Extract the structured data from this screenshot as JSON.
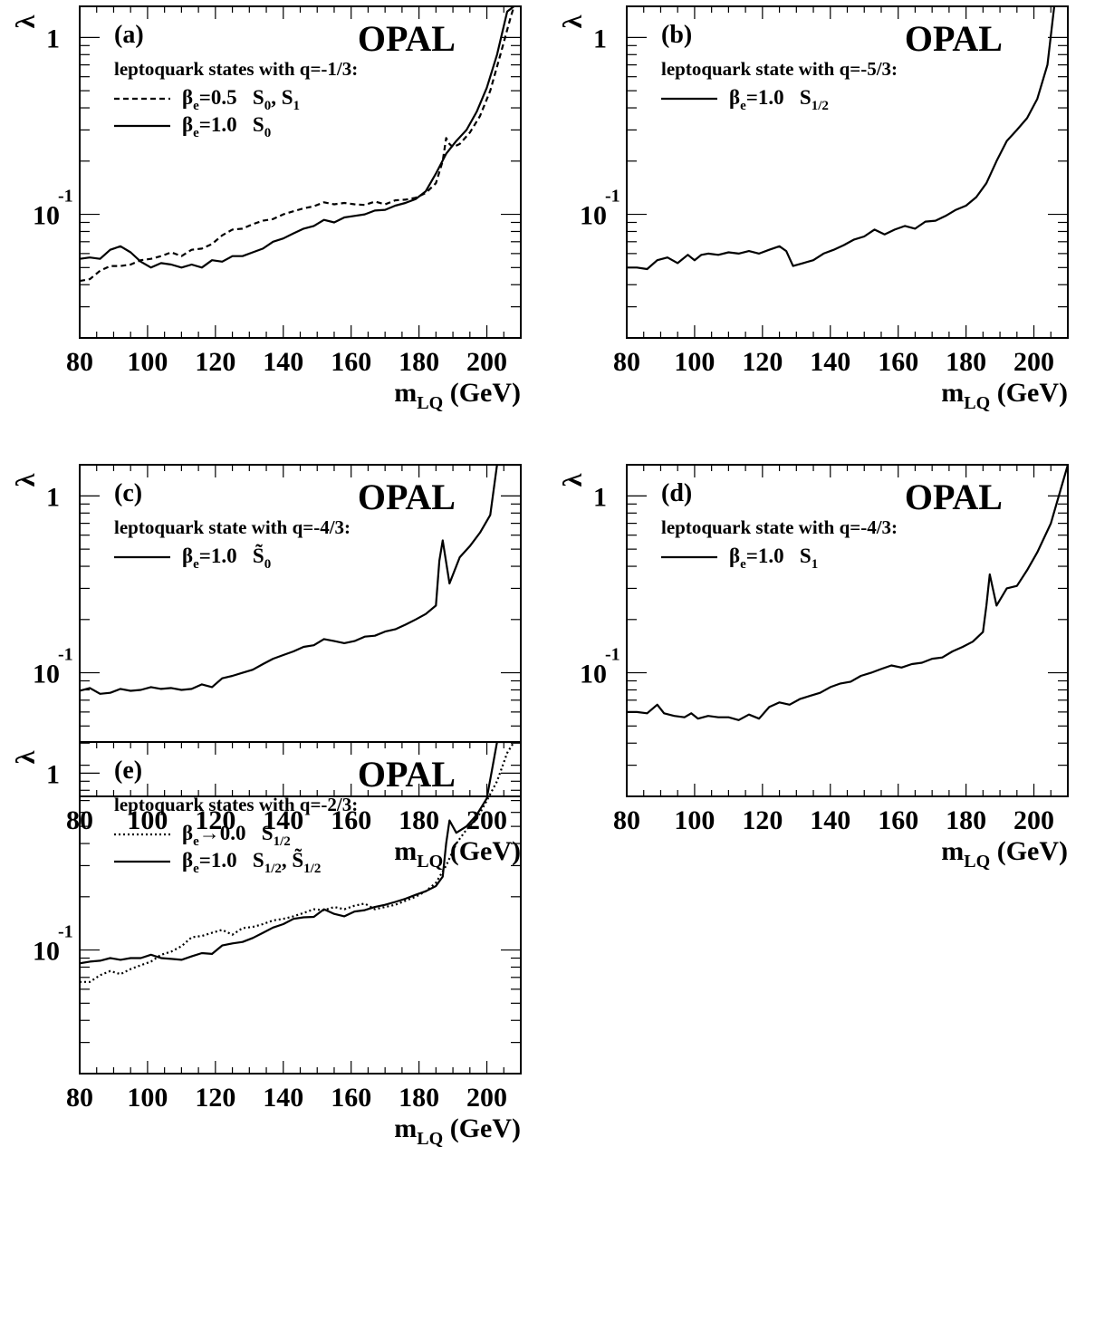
{
  "chart_data": [
    {
      "type": "line",
      "panel_label": "(a)",
      "experiment": "OPAL",
      "heading": "leptoquark states with q=-1/3:",
      "ylabel": "λ",
      "xlabel": {
        "main": "m",
        "sub": "LQ",
        "unit": "(GeV)"
      },
      "y_scale": "log",
      "xlim": [
        80,
        210
      ],
      "ylim": [
        0.02,
        1.5
      ],
      "x_ticks": [
        "80",
        "100",
        "120",
        "140",
        "160",
        "180",
        "200"
      ],
      "y_ticks": [
        {
          "value": 1,
          "label": "1"
        },
        {
          "value": 0.1,
          "label": "10",
          "exp": "-1"
        }
      ],
      "legend": [
        {
          "style": "dashed",
          "beta_sym": "β",
          "beta_sub": "e",
          "beta_val": "=0.5",
          "state": "S",
          "state_sub": "0",
          "sep": ", ",
          "state2": "S",
          "state2_sub": "1"
        },
        {
          "style": "solid",
          "beta_sym": "β",
          "beta_sub": "e",
          "beta_val": "=1.0",
          "state": "S",
          "state_sub": "0"
        }
      ],
      "series": [
        {
          "style": "dashed",
          "x": [
            80,
            83,
            86,
            89,
            92,
            95,
            98,
            101,
            104,
            107,
            110,
            113,
            116,
            119,
            122,
            125,
            128,
            131,
            134,
            137,
            140,
            143,
            146,
            149,
            152,
            155,
            158,
            161,
            164,
            167,
            170,
            173,
            176,
            179,
            182,
            185,
            187,
            188,
            189,
            190,
            192,
            195,
            198,
            201,
            204,
            207,
            208
          ],
          "y": [
            0.042,
            0.043,
            0.048,
            0.051,
            0.051,
            0.052,
            0.055,
            0.056,
            0.058,
            0.061,
            0.058,
            0.063,
            0.064,
            0.068,
            0.076,
            0.082,
            0.083,
            0.088,
            0.092,
            0.094,
            0.1,
            0.104,
            0.108,
            0.111,
            0.117,
            0.114,
            0.116,
            0.114,
            0.113,
            0.118,
            0.114,
            0.12,
            0.121,
            0.124,
            0.132,
            0.15,
            0.2,
            0.27,
            0.25,
            0.24,
            0.25,
            0.29,
            0.36,
            0.5,
            0.8,
            1.3,
            1.5
          ]
        },
        {
          "style": "solid",
          "x": [
            80,
            83,
            86,
            89,
            92,
            95,
            98,
            101,
            104,
            107,
            110,
            113,
            116,
            119,
            122,
            125,
            128,
            131,
            134,
            137,
            140,
            143,
            146,
            149,
            152,
            155,
            158,
            161,
            164,
            167,
            170,
            173,
            176,
            179,
            182,
            185,
            188,
            191,
            194,
            197,
            200,
            203,
            206,
            208
          ],
          "y": [
            0.056,
            0.057,
            0.056,
            0.063,
            0.066,
            0.061,
            0.054,
            0.05,
            0.053,
            0.052,
            0.05,
            0.052,
            0.05,
            0.055,
            0.054,
            0.058,
            0.058,
            0.061,
            0.064,
            0.07,
            0.073,
            0.078,
            0.083,
            0.086,
            0.093,
            0.09,
            0.096,
            0.098,
            0.1,
            0.105,
            0.106,
            0.112,
            0.116,
            0.122,
            0.135,
            0.17,
            0.22,
            0.26,
            0.3,
            0.38,
            0.52,
            0.8,
            1.4,
            1.5
          ]
        }
      ]
    },
    {
      "type": "line",
      "panel_label": "(b)",
      "experiment": "OPAL",
      "heading": "leptoquark state with q=-5/3:",
      "ylabel": "λ",
      "xlabel": {
        "main": "m",
        "sub": "LQ",
        "unit": "(GeV)"
      },
      "y_scale": "log",
      "xlim": [
        80,
        210
      ],
      "ylim": [
        0.02,
        1.5
      ],
      "x_ticks": [
        "80",
        "100",
        "120",
        "140",
        "160",
        "180",
        "200"
      ],
      "y_ticks": [
        {
          "value": 1,
          "label": "1"
        },
        {
          "value": 0.1,
          "label": "10",
          "exp": "-1"
        }
      ],
      "legend": [
        {
          "style": "solid",
          "beta_sym": "β",
          "beta_sub": "e",
          "beta_val": "=1.0",
          "state": "S",
          "state_sub": "1/2"
        }
      ],
      "series": [
        {
          "style": "solid",
          "x": [
            80,
            83,
            86,
            89,
            92,
            95,
            98,
            100,
            102,
            104,
            107,
            110,
            113,
            116,
            119,
            122,
            125,
            127,
            129,
            132,
            135,
            138,
            141,
            144,
            147,
            150,
            153,
            156,
            159,
            162,
            165,
            168,
            171,
            174,
            177,
            180,
            183,
            186,
            189,
            192,
            195,
            198,
            201,
            204,
            206
          ],
          "y": [
            0.05,
            0.05,
            0.049,
            0.055,
            0.057,
            0.053,
            0.059,
            0.055,
            0.059,
            0.06,
            0.059,
            0.061,
            0.06,
            0.062,
            0.06,
            0.063,
            0.066,
            0.062,
            0.051,
            0.053,
            0.055,
            0.06,
            0.063,
            0.067,
            0.072,
            0.075,
            0.082,
            0.077,
            0.082,
            0.086,
            0.083,
            0.091,
            0.092,
            0.098,
            0.106,
            0.112,
            0.125,
            0.15,
            0.2,
            0.26,
            0.3,
            0.35,
            0.45,
            0.7,
            1.5
          ]
        }
      ]
    },
    {
      "type": "line",
      "panel_label": "(c)",
      "experiment": "OPAL",
      "heading": "leptoquark state with q=-4/3:",
      "ylabel": "λ",
      "xlabel": {
        "main": "m",
        "sub": "LQ",
        "unit": "(GeV)"
      },
      "y_scale": "log",
      "xlim": [
        80,
        210
      ],
      "ylim": [
        0.02,
        1.5
      ],
      "x_ticks": [
        "80",
        "100",
        "120",
        "140",
        "160",
        "180",
        "200"
      ],
      "y_ticks": [
        {
          "value": 1,
          "label": "1"
        },
        {
          "value": 0.1,
          "label": "10",
          "exp": "-1"
        }
      ],
      "legend": [
        {
          "style": "solid",
          "beta_sym": "β",
          "beta_sub": "e",
          "beta_val": "=1.0",
          "state": "S̃",
          "state_sub": "0"
        }
      ],
      "series": [
        {
          "style": "solid",
          "x": [
            80,
            83,
            86,
            89,
            92,
            95,
            98,
            101,
            104,
            107,
            110,
            113,
            116,
            119,
            122,
            125,
            128,
            131,
            134,
            137,
            140,
            143,
            146,
            149,
            152,
            155,
            158,
            161,
            164,
            167,
            170,
            173,
            176,
            179,
            182,
            185,
            186,
            187,
            189,
            192,
            195,
            198,
            201,
            203,
            210
          ],
          "y": [
            0.079,
            0.082,
            0.076,
            0.077,
            0.081,
            0.079,
            0.08,
            0.083,
            0.081,
            0.082,
            0.08,
            0.081,
            0.086,
            0.083,
            0.093,
            0.096,
            0.1,
            0.104,
            0.112,
            0.12,
            0.126,
            0.132,
            0.14,
            0.143,
            0.155,
            0.151,
            0.147,
            0.151,
            0.16,
            0.162,
            0.171,
            0.176,
            0.187,
            0.2,
            0.215,
            0.24,
            0.43,
            0.56,
            0.32,
            0.45,
            0.52,
            0.62,
            0.78,
            1.5,
            1.5
          ]
        }
      ]
    },
    {
      "type": "line",
      "panel_label": "(d)",
      "experiment": "OPAL",
      "heading": "leptoquark state with q=-4/3:",
      "ylabel": "λ",
      "xlabel": {
        "main": "m",
        "sub": "LQ",
        "unit": "(GeV)"
      },
      "y_scale": "log",
      "xlim": [
        80,
        210
      ],
      "ylim": [
        0.02,
        1.5
      ],
      "x_ticks": [
        "80",
        "100",
        "120",
        "140",
        "160",
        "180",
        "200"
      ],
      "y_ticks": [
        {
          "value": 1,
          "label": "1"
        },
        {
          "value": 0.1,
          "label": "10",
          "exp": "-1"
        }
      ],
      "legend": [
        {
          "style": "solid",
          "beta_sym": "β",
          "beta_sub": "e",
          "beta_val": "=1.0",
          "state": "S",
          "state_sub": "1"
        }
      ],
      "series": [
        {
          "style": "solid",
          "x": [
            80,
            83,
            86,
            89,
            91,
            94,
            97,
            99,
            101,
            104,
            107,
            110,
            113,
            116,
            119,
            122,
            125,
            128,
            131,
            134,
            137,
            140,
            143,
            146,
            149,
            152,
            155,
            158,
            161,
            164,
            167,
            170,
            173,
            176,
            179,
            182,
            185,
            186,
            187,
            189,
            192,
            195,
            198,
            201,
            205,
            210
          ],
          "y": [
            0.06,
            0.06,
            0.059,
            0.066,
            0.059,
            0.057,
            0.056,
            0.059,
            0.055,
            0.057,
            0.056,
            0.056,
            0.054,
            0.058,
            0.055,
            0.064,
            0.068,
            0.066,
            0.071,
            0.074,
            0.077,
            0.083,
            0.087,
            0.089,
            0.096,
            0.1,
            0.105,
            0.11,
            0.107,
            0.112,
            0.114,
            0.12,
            0.122,
            0.132,
            0.14,
            0.15,
            0.17,
            0.24,
            0.36,
            0.24,
            0.3,
            0.31,
            0.38,
            0.48,
            0.7,
            1.5
          ]
        }
      ]
    },
    {
      "type": "line",
      "panel_label": "(e)",
      "experiment": "OPAL",
      "heading": "leptoquark states with q=-2/3:",
      "ylabel": "λ",
      "xlabel": {
        "main": "m",
        "sub": "LQ",
        "unit": "(GeV)"
      },
      "y_scale": "log",
      "xlim": [
        80,
        210
      ],
      "ylim": [
        0.02,
        1.5
      ],
      "x_ticks": [
        "80",
        "100",
        "120",
        "140",
        "160",
        "180",
        "200"
      ],
      "y_ticks": [
        {
          "value": 1,
          "label": "1"
        },
        {
          "value": 0.1,
          "label": "10",
          "exp": "-1"
        }
      ],
      "legend": [
        {
          "style": "dotted",
          "beta_sym": "β",
          "beta_sub": "e",
          "beta_val": "→0.0",
          "state": "S",
          "state_sub": "1/2"
        },
        {
          "style": "solid",
          "beta_sym": "β",
          "beta_sub": "e",
          "beta_val": "=1.0",
          "state": "S",
          "state_sub": "1/2",
          "sep": ", ",
          "state2": "S̃",
          "state2_sub": "1/2"
        }
      ],
      "series": [
        {
          "style": "dotted",
          "x": [
            80,
            83,
            86,
            89,
            92,
            95,
            98,
            101,
            104,
            107,
            110,
            113,
            116,
            119,
            122,
            125,
            128,
            131,
            134,
            137,
            140,
            143,
            146,
            149,
            152,
            155,
            158,
            161,
            164,
            167,
            170,
            173,
            176,
            179,
            182,
            185,
            188,
            191,
            194,
            197,
            200,
            203,
            206,
            208
          ],
          "y": [
            0.066,
            0.066,
            0.072,
            0.076,
            0.073,
            0.078,
            0.082,
            0.086,
            0.094,
            0.098,
            0.105,
            0.118,
            0.12,
            0.125,
            0.13,
            0.122,
            0.133,
            0.135,
            0.14,
            0.147,
            0.15,
            0.155,
            0.162,
            0.17,
            0.168,
            0.175,
            0.17,
            0.178,
            0.183,
            0.17,
            0.175,
            0.18,
            0.19,
            0.2,
            0.215,
            0.24,
            0.3,
            0.4,
            0.48,
            0.55,
            0.7,
            0.9,
            1.3,
            1.5
          ]
        },
        {
          "style": "solid",
          "x": [
            80,
            83,
            86,
            89,
            92,
            95,
            98,
            101,
            104,
            107,
            110,
            113,
            116,
            119,
            122,
            125,
            128,
            131,
            134,
            137,
            140,
            143,
            146,
            149,
            152,
            155,
            158,
            161,
            164,
            167,
            170,
            173,
            176,
            179,
            182,
            185,
            187,
            188,
            189,
            191,
            194,
            197,
            200,
            203,
            210
          ],
          "y": [
            0.084,
            0.086,
            0.087,
            0.09,
            0.088,
            0.09,
            0.09,
            0.094,
            0.09,
            0.089,
            0.088,
            0.092,
            0.096,
            0.095,
            0.106,
            0.109,
            0.111,
            0.117,
            0.125,
            0.134,
            0.14,
            0.15,
            0.153,
            0.154,
            0.17,
            0.16,
            0.155,
            0.165,
            0.168,
            0.175,
            0.18,
            0.187,
            0.195,
            0.205,
            0.215,
            0.23,
            0.26,
            0.4,
            0.54,
            0.46,
            0.5,
            0.58,
            0.72,
            1.5,
            1.5
          ]
        }
      ]
    }
  ]
}
